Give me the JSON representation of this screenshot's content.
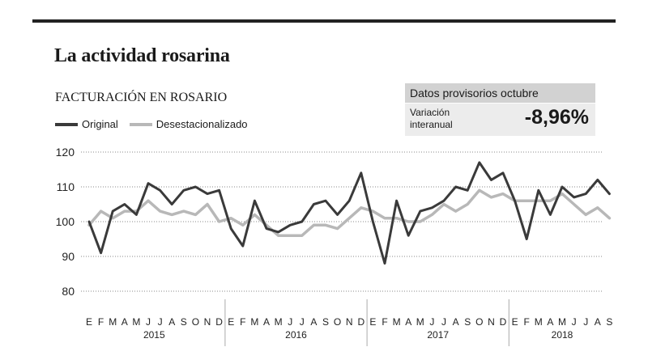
{
  "header": {
    "headline": "La actividad rosarina"
  },
  "info_box": {
    "title": "Datos provisorios octubre",
    "label": "Variación interanual",
    "value": "-8,96%"
  },
  "colors": {
    "original": "#3a3a3a",
    "desestacionalizado": "#b8b8b8",
    "grid": "#8a8a8a",
    "divider": "#aaaaaa"
  },
  "chart_data": {
    "type": "line",
    "title": "FACTURACIÓN EN ROSARIO",
    "xlabel": "",
    "ylabel": "",
    "ylim": [
      80,
      120
    ],
    "yticks": [
      80,
      90,
      100,
      110,
      120
    ],
    "grid": "horizontal-dotted",
    "legend_position": "top-left",
    "month_labels": [
      "E",
      "F",
      "M",
      "A",
      "M",
      "J",
      "J",
      "A",
      "S",
      "O",
      "N",
      "D",
      "E",
      "F",
      "M",
      "A",
      "M",
      "J",
      "J",
      "A",
      "S",
      "O",
      "N",
      "D",
      "E",
      "F",
      "M",
      "A",
      "M",
      "J",
      "J",
      "A",
      "S",
      "O",
      "N",
      "D",
      "E",
      "F",
      "M",
      "A",
      "M",
      "J",
      "J",
      "A",
      "S"
    ],
    "years": [
      {
        "label": "2015",
        "start": 0,
        "end": 11
      },
      {
        "label": "2016",
        "start": 12,
        "end": 23
      },
      {
        "label": "2017",
        "start": 24,
        "end": 35
      },
      {
        "label": "2018",
        "start": 36,
        "end": 44
      }
    ],
    "series": [
      {
        "name": "Original",
        "values": [
          100,
          91,
          103,
          105,
          102,
          111,
          109,
          105,
          109,
          110,
          108,
          109,
          98,
          93,
          106,
          98,
          97,
          99,
          100,
          105,
          106,
          102,
          106,
          114,
          100,
          88,
          106,
          96,
          103,
          104,
          106,
          110,
          109,
          117,
          112,
          114,
          106,
          95,
          109,
          102,
          110,
          107,
          108,
          112,
          108
        ]
      },
      {
        "name": "Desestacionalizado",
        "values": [
          99,
          103,
          101,
          103,
          103,
          106,
          103,
          102,
          103,
          102,
          105,
          100,
          101,
          99,
          102,
          99,
          96,
          96,
          96,
          99,
          99,
          98,
          101,
          104,
          103,
          101,
          101,
          100,
          100,
          102,
          105,
          103,
          105,
          109,
          107,
          108,
          106,
          106,
          106,
          106,
          108,
          105,
          102,
          104,
          101
        ]
      }
    ]
  }
}
